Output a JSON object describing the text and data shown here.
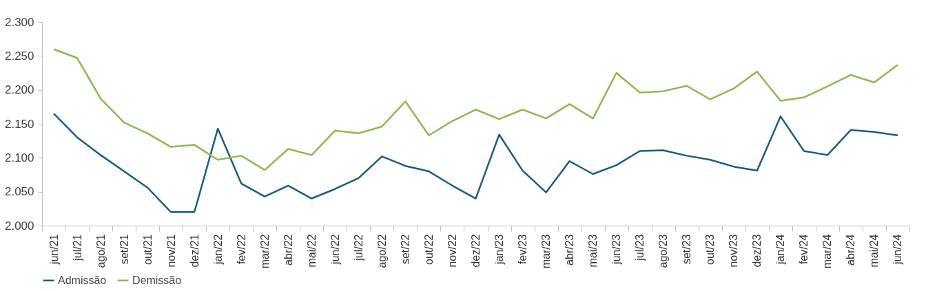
{
  "chart_data": {
    "type": "line",
    "categories": [
      "jun/21",
      "jul/21",
      "ago/21",
      "set/21",
      "out/21",
      "nov/21",
      "dez/21",
      "jan/22",
      "fev/22",
      "mar/22",
      "abr/22",
      "mai/22",
      "jun/22",
      "jul/22",
      "ago/22",
      "set/22",
      "out/22",
      "nov/22",
      "dez/22",
      "jan/23",
      "fev/23",
      "mar/23",
      "abr/23",
      "mai/23",
      "jun/23",
      "jul/23",
      "ago/23",
      "set/23",
      "out/23",
      "nov/23",
      "dez/23",
      "jan/24",
      "fev/24",
      "mar/24",
      "abr/24",
      "mai/24",
      "jun/24"
    ],
    "series": [
      {
        "name": "Admissão",
        "color": "#1b5e7b",
        "values": [
          2165,
          2130,
          2104,
          2080,
          2056,
          2020,
          2020,
          2143,
          2062,
          2043,
          2059,
          2040,
          2054,
          2070,
          2102,
          2088,
          2080,
          2059,
          2040,
          2134,
          2081,
          2049,
          2095,
          2076,
          2089,
          2110,
          2111,
          2103,
          2097,
          2087,
          2081,
          2161,
          2110,
          2104,
          2141,
          2138,
          2133
        ]
      },
      {
        "name": "Demissão",
        "color": "#8fb84f",
        "values": [
          2260,
          2247,
          2187,
          2152,
          2136,
          2116,
          2119,
          2097,
          2103,
          2082,
          2113,
          2104,
          2140,
          2136,
          2146,
          2183,
          2133,
          2154,
          2171,
          2157,
          2171,
          2158,
          2179,
          2158,
          2225,
          2196,
          2198,
          2206,
          2186,
          2202,
          2227,
          2184,
          2189,
          2205,
          2222,
          2211,
          2237
        ]
      }
    ],
    "ylim": [
      2000,
      2300
    ],
    "yticks": [
      {
        "value": 2000,
        "label": "2.000"
      },
      {
        "value": 2050,
        "label": "2.050"
      },
      {
        "value": 2100,
        "label": "2.100"
      },
      {
        "value": 2150,
        "label": "2.150"
      },
      {
        "value": 2200,
        "label": "2.200"
      },
      {
        "value": 2250,
        "label": "2.250"
      },
      {
        "value": 2300,
        "label": "2.300"
      }
    ],
    "grid": false,
    "legend": "bottom",
    "marker": "none",
    "line_style": "solid"
  }
}
